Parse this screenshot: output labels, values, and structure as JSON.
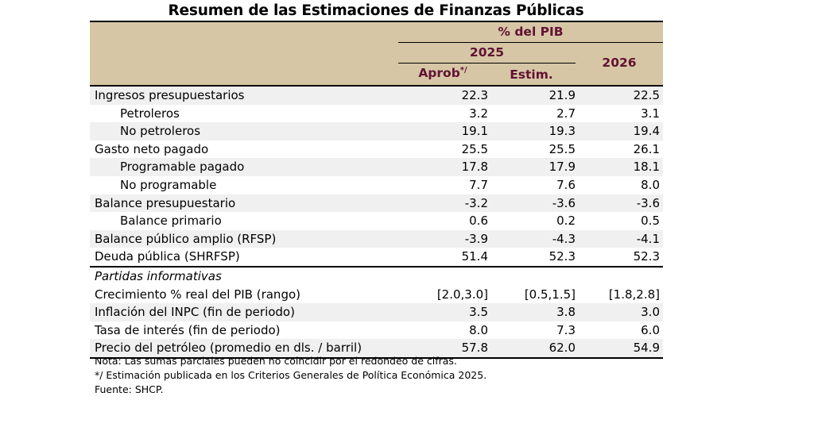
{
  "title": "Resumen de las Estimaciones de Finanzas Públicas",
  "header": {
    "group": "% del PIB",
    "year_a": "2025",
    "col_aprob": "Aprob",
    "col_aprob_mark": "*/",
    "col_estim": "Estim.",
    "year_b": "2026"
  },
  "rows": [
    {
      "label": "Ingresos presupuestarios",
      "v1": "22.3",
      "v2": "21.9",
      "v3": "22.5"
    },
    {
      "label": "Petroleros",
      "v1": "3.2",
      "v2": "2.7",
      "v3": "3.1"
    },
    {
      "label": "No petroleros",
      "v1": "19.1",
      "v2": "19.3",
      "v3": "19.4"
    },
    {
      "label": "Gasto neto pagado",
      "v1": "25.5",
      "v2": "25.5",
      "v3": "26.1"
    },
    {
      "label": "Programable pagado",
      "v1": "17.8",
      "v2": "17.9",
      "v3": "18.1"
    },
    {
      "label": "No programable",
      "v1": "7.7",
      "v2": "7.6",
      "v3": "8.0"
    },
    {
      "label": "Balance presupuestario",
      "v1": "-3.2",
      "v2": "-3.6",
      "v3": "-3.6"
    },
    {
      "label": "Balance primario",
      "v1": "0.6",
      "v2": "0.2",
      "v3": "0.5"
    },
    {
      "label": "Balance público amplio (RFSP)",
      "v1": "-3.9",
      "v2": "-4.3",
      "v3": "-4.1"
    },
    {
      "label": "Deuda pública (SHRFSP)",
      "v1": "51.4",
      "v2": "52.3",
      "v3": "52.3"
    }
  ],
  "informative_heading": "Partidas informativas",
  "informative_rows": [
    {
      "label": "Crecimiento % real del PIB (rango)",
      "v1": "[2.0,3.0]",
      "v2": "[0.5,1.5]",
      "v3": "[1.8,2.8]"
    },
    {
      "label": "Inflación del INPC (fin de periodo)",
      "v1": "3.5",
      "v2": "3.8",
      "v3": "3.0"
    },
    {
      "label": "Tasa de interés (fin de periodo)",
      "v1": "8.0",
      "v2": "7.3",
      "v3": "6.0"
    },
    {
      "label": "Precio del petróleo (promedio en dls. / barril)",
      "v1": "57.8",
      "v2": "62.0",
      "v3": "54.9"
    }
  ],
  "notes": [
    "Nota: Las sumas parciales pueden no coincidir por el redondeo de cifras.",
    "*/ Estimación publicada en los Criterios Generales de Política Económica 2025.",
    "Fuente: SHCP."
  ],
  "colors": {
    "header_bg": "#d6c6a6",
    "header_text": "#611232",
    "stripe": "#f0f0f0"
  }
}
